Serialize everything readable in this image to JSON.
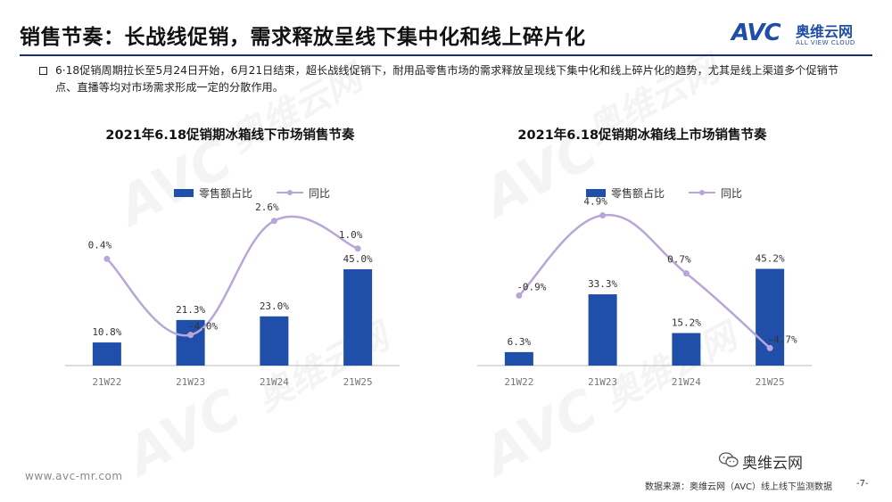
{
  "header": {
    "title": "销售节奏：长战线促销，需求释放呈线下集中化和线上碎片化",
    "logo_avc": "AVC",
    "logo_cn": "奥维云网",
    "logo_en": "ALL VIEW CLOUD"
  },
  "summary": "6·18促销周期拉长至5月24日开始，6月21日结束，超长战线促销下，耐用品零售市场的需求释放呈现线下集中化和线上碎片化的趋势，尤其是线上渠道多个促销节点、直播等均对市场需求形成一定的分散作用。",
  "watermark": {
    "mark": "AVC",
    "cn": "奥维云网",
    "en": "ALL VIEW CLOUD"
  },
  "colors": {
    "bar": "#1f4fa8",
    "line": "#b9a6d9",
    "title_rule": "#1a2f6b"
  },
  "chart_data": [
    {
      "type": "bar",
      "title": "2021年6.18促销期冰箱线下市场销售节奏",
      "categories": [
        "21W22",
        "21W23",
        "21W24",
        "21W25"
      ],
      "series": [
        {
          "name": "零售额占比",
          "kind": "bar",
          "values": [
            10.8,
            21.3,
            23.0,
            45.0
          ],
          "labels": [
            "10.8%",
            "21.3%",
            "23.0%",
            "45.0%"
          ]
        },
        {
          "name": "同比",
          "kind": "line",
          "values": [
            0.4,
            -4.0,
            2.6,
            1.0
          ],
          "labels": [
            "0.4%",
            "-4.0%",
            "2.6%",
            "1.0%"
          ]
        }
      ],
      "bar_ylim": [
        0,
        50
      ],
      "line_ylim": [
        -5,
        3
      ],
      "legend": "top-center",
      "grid": false
    },
    {
      "type": "bar",
      "title": "2021年6.18促销期冰箱线上市场销售节奏",
      "categories": [
        "21W22",
        "21W23",
        "21W24",
        "21W25"
      ],
      "series": [
        {
          "name": "零售额占比",
          "kind": "bar",
          "values": [
            6.3,
            33.3,
            15.2,
            45.2
          ],
          "labels": [
            "6.3%",
            "33.3%",
            "15.2%",
            "45.2%"
          ]
        },
        {
          "name": "同比",
          "kind": "line",
          "values": [
            -0.9,
            4.9,
            0.7,
            -4.7
          ],
          "labels": [
            "-0.9%",
            "4.9%",
            "0.7%",
            "-4.7%"
          ]
        }
      ],
      "bar_ylim": [
        0,
        50
      ],
      "line_ylim": [
        -5,
        5
      ],
      "legend": "top-center",
      "grid": false
    }
  ],
  "footer": {
    "url": "www.avc-mr.com",
    "wechat": "奥维云网",
    "source": "数据来源：奥维云网（AVC）线上线下监测数据",
    "page": "-7-"
  }
}
